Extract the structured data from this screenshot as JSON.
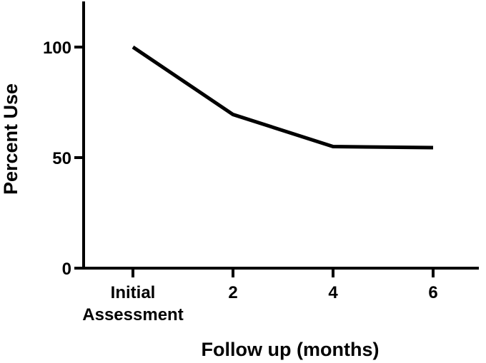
{
  "chart_data": {
    "type": "line",
    "title": "",
    "xlabel": "Follow up (months)",
    "ylabel": "Percent Use",
    "categories": [
      [
        "Initial",
        "Assessment"
      ],
      [
        "2"
      ],
      [
        "4"
      ],
      [
        "6"
      ]
    ],
    "series": [
      {
        "values": [
          100,
          69.5,
          55,
          54.5
        ]
      }
    ],
    "ylim": [
      0,
      120
    ],
    "yticks": [
      0,
      50,
      100
    ],
    "grid": false,
    "legend": "none",
    "line_color": "#000000"
  }
}
